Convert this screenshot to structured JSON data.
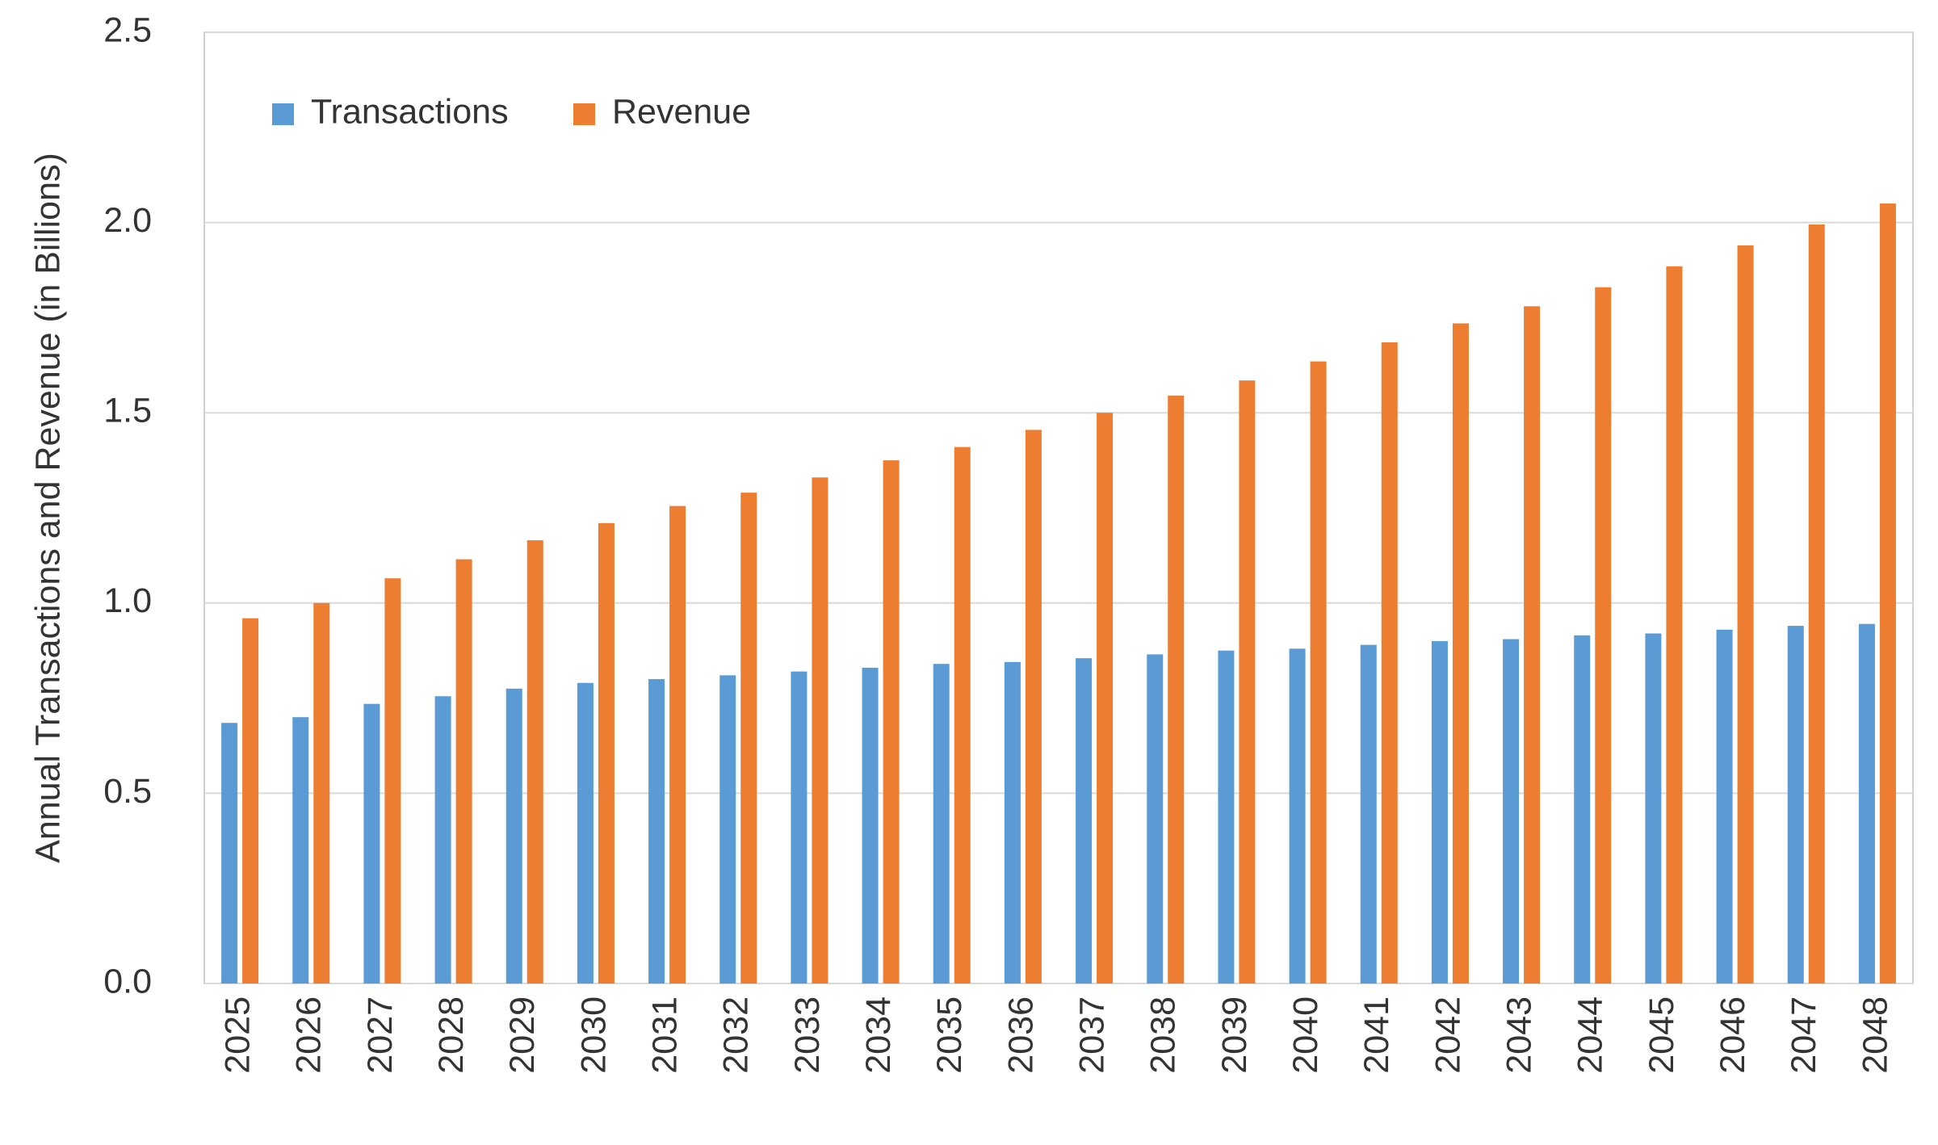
{
  "chart_data": {
    "type": "bar",
    "y_label": "Annual Transactions and Revenue (in Billions)",
    "categories": [
      "2025",
      "2026",
      "2027",
      "2028",
      "2029",
      "2030",
      "2031",
      "2032",
      "2033",
      "2034",
      "2035",
      "2036",
      "2037",
      "2038",
      "2039",
      "2040",
      "2041",
      "2042",
      "2043",
      "2044",
      "2045",
      "2046",
      "2047",
      "2048"
    ],
    "series": [
      {
        "name": "Transactions",
        "color": "#5b9bd5",
        "values": [
          0.685,
          0.7,
          0.735,
          0.755,
          0.775,
          0.79,
          0.8,
          0.81,
          0.82,
          0.83,
          0.84,
          0.845,
          0.855,
          0.865,
          0.875,
          0.88,
          0.89,
          0.9,
          0.905,
          0.915,
          0.92,
          0.93,
          0.94,
          0.945
        ]
      },
      {
        "name": "Revenue",
        "color": "#ed7d31",
        "values": [
          0.96,
          1.0,
          1.065,
          1.115,
          1.165,
          1.21,
          1.255,
          1.29,
          1.33,
          1.375,
          1.41,
          1.455,
          1.5,
          1.545,
          1.585,
          1.635,
          1.685,
          1.735,
          1.78,
          1.83,
          1.885,
          1.94,
          1.995,
          2.05
        ]
      }
    ],
    "ylim": [
      0,
      2.5
    ],
    "yticks": [
      {
        "value": 0,
        "label": "0.0"
      },
      0.5,
      {
        "value": 1,
        "label": "1.0"
      },
      1.5,
      {
        "value": 2,
        "label": "2.0"
      },
      2.5
    ],
    "grid": true,
    "legend": "top-left"
  }
}
